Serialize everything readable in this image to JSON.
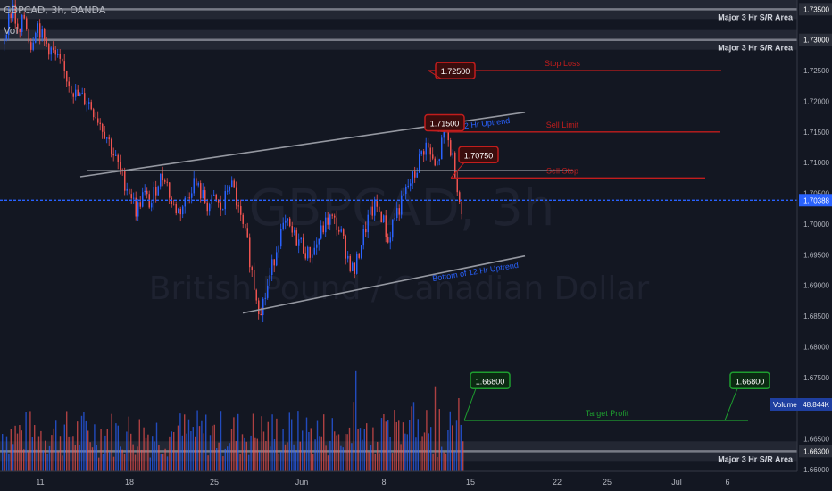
{
  "header": {
    "symbol_line": "GBPCAD, 3h, OANDA",
    "volume_label": "Vol"
  },
  "watermark": {
    "symbol": "GBPCAD, 3h",
    "description": "British Pound / Canadian Dollar"
  },
  "colors": {
    "background": "#131722",
    "up": "#2962ff",
    "down": "#ef5350",
    "sr_band": "#2a2e39",
    "sr_line": "#787b86",
    "current_price": "#2962ff",
    "trade_red": "#c21d1d",
    "target_green": "#1e9e2f"
  },
  "chart_data": {
    "type": "candlestick",
    "price_axis": {
      "ticks": [
        "1.73500",
        "1.73000",
        "1.72500",
        "1.72000",
        "1.71500",
        "1.71000",
        "1.70500",
        "1.70000",
        "1.69500",
        "1.69000",
        "1.68500",
        "1.68000",
        "1.67500",
        "1.67000",
        "1.66500",
        "1.66000"
      ],
      "range": [
        1.6597,
        1.7365
      ]
    },
    "time_axis": {
      "ticks": [
        "11",
        "18",
        "25",
        "Jun",
        "8",
        "15",
        "22",
        "25",
        "Jul",
        "6"
      ]
    },
    "series_path": [
      [
        0,
        1.728
      ],
      [
        6,
        1.732
      ],
      [
        14,
        1.7355
      ],
      [
        20,
        1.73
      ],
      [
        26,
        1.734
      ],
      [
        34,
        1.729
      ],
      [
        40,
        1.733
      ],
      [
        48,
        1.73
      ],
      [
        58,
        1.728
      ],
      [
        70,
        1.725
      ],
      [
        84,
        1.721
      ],
      [
        98,
        1.72
      ],
      [
        110,
        1.717
      ],
      [
        120,
        1.714
      ],
      [
        130,
        1.71
      ],
      [
        138,
        1.707
      ],
      [
        146,
        1.705
      ],
      [
        152,
        1.702
      ],
      [
        160,
        1.705
      ],
      [
        168,
        1.703
      ],
      [
        176,
        1.707
      ],
      [
        184,
        1.708
      ],
      [
        192,
        1.703
      ],
      [
        200,
        1.702
      ],
      [
        208,
        1.704
      ],
      [
        216,
        1.707
      ],
      [
        224,
        1.705
      ],
      [
        232,
        1.703
      ],
      [
        240,
        1.704
      ],
      [
        248,
        1.702
      ],
      [
        256,
        1.707
      ],
      [
        262,
        1.705
      ],
      [
        268,
        1.701
      ],
      [
        276,
        1.697
      ],
      [
        284,
        1.69
      ],
      [
        290,
        1.686
      ],
      [
        296,
        1.688
      ],
      [
        304,
        1.693
      ],
      [
        312,
        1.698
      ],
      [
        320,
        1.7
      ],
      [
        328,
        1.698
      ],
      [
        336,
        1.697
      ],
      [
        344,
        1.695
      ],
      [
        352,
        1.696
      ],
      [
        360,
        1.699
      ],
      [
        368,
        1.701
      ],
      [
        376,
        1.7
      ],
      [
        382,
        1.698
      ],
      [
        390,
        1.694
      ],
      [
        396,
        1.692
      ],
      [
        404,
        1.697
      ],
      [
        412,
        1.701
      ],
      [
        420,
        1.703
      ],
      [
        428,
        1.701
      ],
      [
        434,
        1.697
      ],
      [
        440,
        1.701
      ],
      [
        448,
        1.703
      ],
      [
        456,
        1.706
      ],
      [
        464,
        1.708
      ],
      [
        470,
        1.711
      ],
      [
        476,
        1.713
      ],
      [
        482,
        1.711
      ],
      [
        486,
        1.709
      ],
      [
        490,
        1.71
      ],
      [
        494,
        1.713
      ],
      [
        498,
        1.7165
      ],
      [
        502,
        1.713
      ],
      [
        506,
        1.711
      ],
      [
        510,
        1.708
      ],
      [
        514,
        1.704
      ],
      [
        518,
        1.7005
      ]
    ],
    "current_price": 1.70388,
    "volume_readout": "48.844K",
    "sr_areas": [
      {
        "label": "Major 3 Hr S/R Area",
        "price": 1.735,
        "label_price": "1.73500"
      },
      {
        "label": "Major 3 Hr S/R Area",
        "price": 1.73,
        "label_price": "1.73000"
      },
      {
        "label": "Major 3 Hr S/R Area",
        "price": 1.663,
        "label_price": "1.66300"
      }
    ],
    "trend_channel": {
      "top_label": "Top of 12 Hr Uptrend",
      "bottom_label": "Bottom of 12 Hr Uptrend",
      "top": [
        [
          90,
          1.7077
        ],
        [
          588,
          1.7182
        ]
      ],
      "bottom": [
        [
          272,
          1.6855
        ],
        [
          588,
          1.6948
        ]
      ],
      "mid": [
        [
          98,
          1.7087
        ],
        [
          642,
          1.7087
        ]
      ]
    },
    "trade_levels": [
      {
        "name": "Stop Loss",
        "price": 1.725,
        "label": "1.72500",
        "kind": "red"
      },
      {
        "name": "Sell Limit",
        "price": 1.715,
        "label": "1.71500",
        "kind": "red"
      },
      {
        "name": "Sell Stop",
        "price": 1.7075,
        "label": "1.70750",
        "kind": "red"
      },
      {
        "name": "Target Profit",
        "price": 1.668,
        "label": "1.66800",
        "kind": "green"
      }
    ]
  },
  "axis_tags": {
    "current": "1.70388",
    "volume_title": "Volume",
    "volume_value": "48.844K"
  }
}
